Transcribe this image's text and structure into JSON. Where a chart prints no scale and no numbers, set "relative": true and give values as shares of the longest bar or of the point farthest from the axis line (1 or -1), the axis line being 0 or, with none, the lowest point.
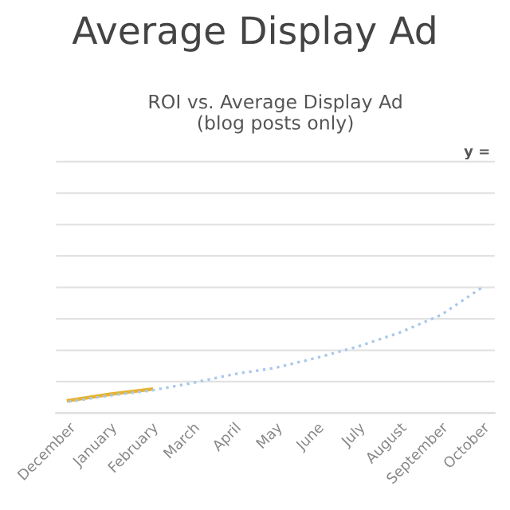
{
  "chart_data": {
    "type": "line",
    "title": "ROI vs. Average Display Ad\n(blog posts only)",
    "subtitle": "Average Display Ad",
    "categories": [
      "December",
      "January",
      "February",
      "March",
      "April",
      "May",
      "June",
      "July",
      "August",
      "September",
      "October"
    ],
    "relative": true,
    "grid": "y",
    "legend": false,
    "annotations": [
      "y ="
    ],
    "series": [
      {
        "color": "#e6b434",
        "line_style": "solid",
        "values": [
          0.1,
          0.15,
          0.19,
          null,
          null,
          null,
          null,
          null,
          null,
          null,
          null
        ]
      },
      {
        "color": "#a9c8ec",
        "line_style": "dotted",
        "values": [
          0.09,
          0.14,
          0.18,
          0.24,
          0.31,
          0.36,
          0.44,
          0.53,
          0.64,
          0.78,
          1
        ]
      }
    ]
  }
}
